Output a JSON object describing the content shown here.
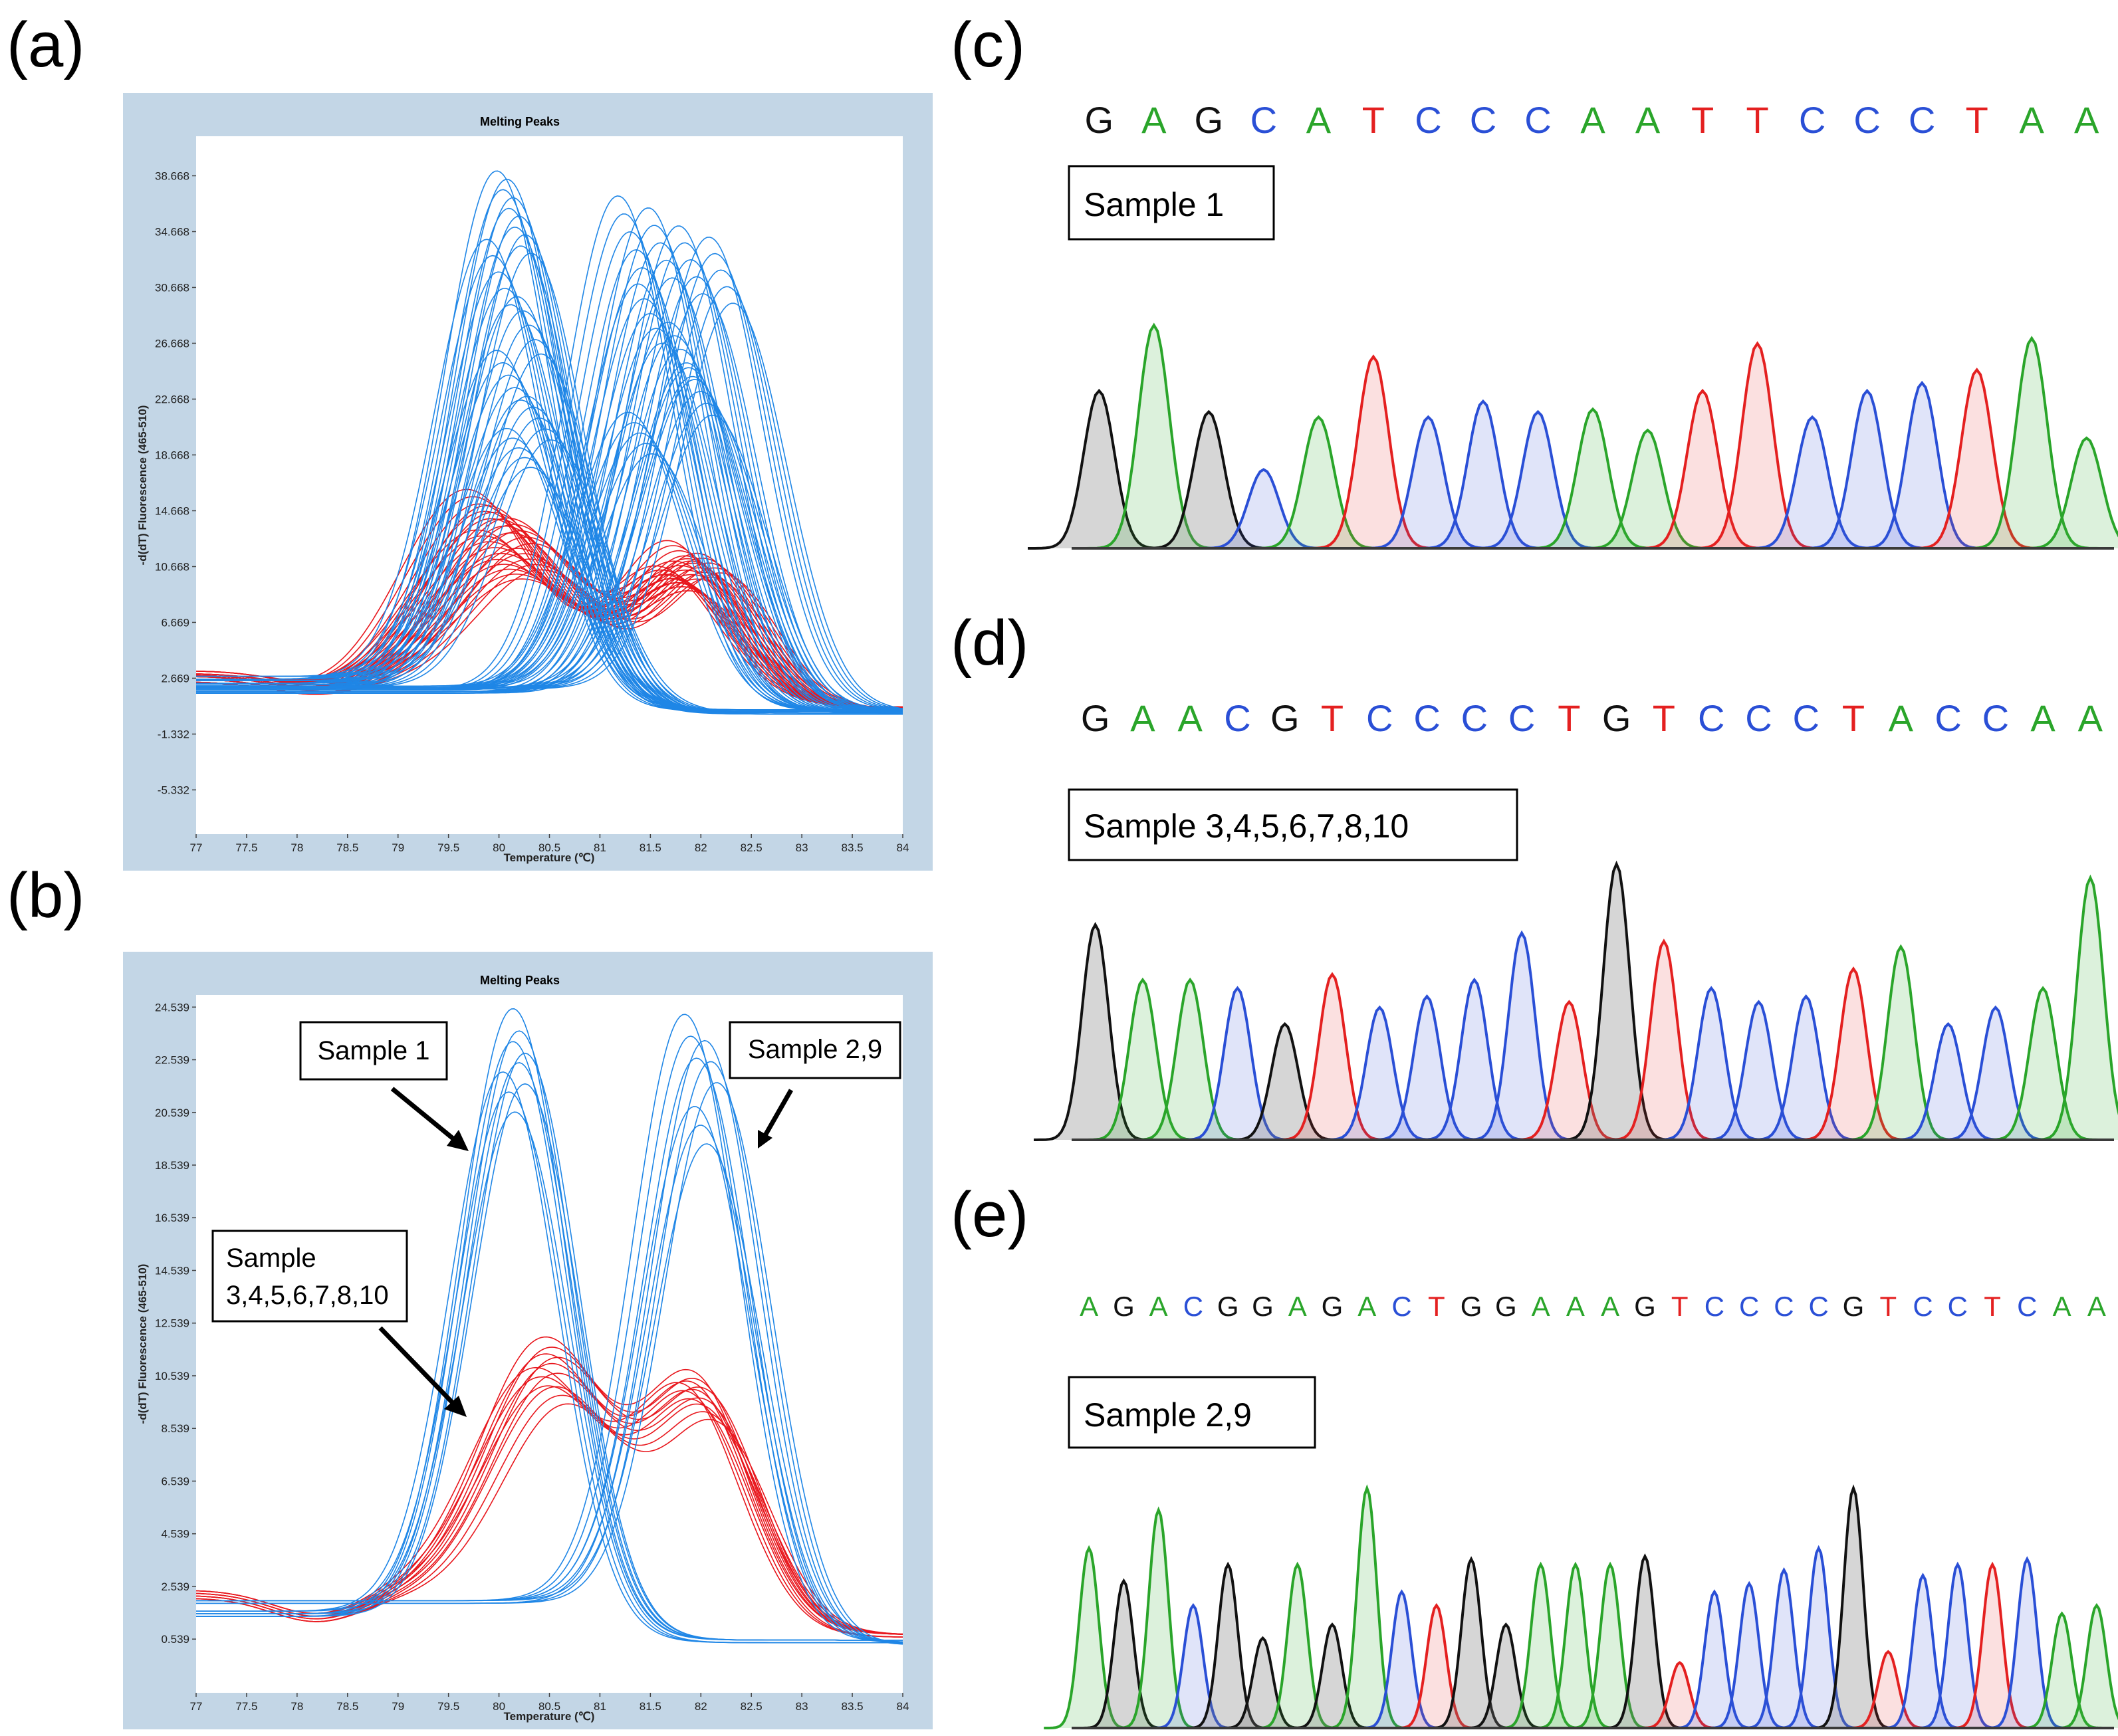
{
  "panel_labels": [
    "(a)",
    "(b)",
    "(c)",
    "(d)",
    "(e)"
  ],
  "colors": {
    "frame_bg": "#c3d6e6",
    "curve_blue": "#1f86e6",
    "curve_red": "#e8161c",
    "base_G": "#111111",
    "base_A": "#2aa52a",
    "base_C": "#2a4fd6",
    "base_T": "#e42020"
  },
  "chart_data": [
    {
      "panel": "(a)",
      "type": "line",
      "title": "Melting Peaks",
      "xlabel": "Temperature (℃)",
      "ylabel": "-d(dT) Fluorescence (465-510)",
      "xlim": [
        77,
        84
      ],
      "ylim": [
        -8.5,
        41.5
      ],
      "x_ticks": [
        "77",
        "77.5",
        "78",
        "78.5",
        "79",
        "79.5",
        "80",
        "80.5",
        "81",
        "81.5",
        "82",
        "82.5",
        "83",
        "83.5",
        "84"
      ],
      "y_ticks": [
        "38.668",
        "34.668",
        "30.668",
        "26.668",
        "22.668",
        "18.668",
        "14.668",
        "10.668",
        "6.669",
        "2.669",
        "-1.332",
        "-5.332"
      ],
      "series": [
        {
          "color": "blue",
          "peak_x": 80.1,
          "peak_y": 38.0,
          "baseline_left": 2.3,
          "baseline_right": 0.2
        },
        {
          "color": "blue",
          "peak_x": 80.2,
          "peak_y": 37.5,
          "baseline_left": 2.0,
          "baseline_right": 0.1
        },
        {
          "color": "blue",
          "peak_x": 80.0,
          "peak_y": 33.0,
          "baseline_left": 2.6,
          "baseline_right": 0.3
        },
        {
          "color": "blue",
          "peak_x": 80.3,
          "peak_y": 29.0,
          "baseline_left": 2.2,
          "baseline_right": 0.1
        },
        {
          "color": "blue",
          "peak_x": 80.1,
          "peak_y": 25.0,
          "baseline_left": 2.8,
          "baseline_right": 0.4
        },
        {
          "color": "blue",
          "peak_x": 80.4,
          "peak_y": 22.0,
          "baseline_left": 2.0,
          "baseline_right": 0.2
        },
        {
          "color": "blue",
          "peak_x": 80.2,
          "peak_y": 19.5,
          "baseline_left": 2.5,
          "baseline_right": 0.3
        },
        {
          "color": "blue",
          "peak_x": 81.3,
          "peak_y": 36.5,
          "baseline_left": 1.8,
          "baseline_right": 0.3
        },
        {
          "color": "blue",
          "peak_x": 81.6,
          "peak_y": 35.5,
          "baseline_left": 2.0,
          "baseline_right": 0.2
        },
        {
          "color": "blue",
          "peak_x": 81.9,
          "peak_y": 34.5,
          "baseline_left": 1.6,
          "baseline_right": 0.4
        },
        {
          "color": "blue",
          "peak_x": 82.2,
          "peak_y": 33.5,
          "baseline_left": 1.9,
          "baseline_right": 0.3
        },
        {
          "color": "blue",
          "peak_x": 81.5,
          "peak_y": 30.0,
          "baseline_left": 2.1,
          "baseline_right": 0.2
        },
        {
          "color": "blue",
          "peak_x": 81.8,
          "peak_y": 27.5,
          "baseline_left": 1.7,
          "baseline_right": 0.3
        },
        {
          "color": "blue",
          "peak_x": 82.0,
          "peak_y": 24.0,
          "baseline_left": 2.0,
          "baseline_right": 0.1
        },
        {
          "color": "blue",
          "peak_x": 81.4,
          "peak_y": 21.0,
          "baseline_left": 1.8,
          "baseline_right": 0.3
        },
        {
          "color": "red",
          "peak1_x": 79.8,
          "peak1_y": 15.0,
          "peak2_x": 81.8,
          "peak2_y": 10.0,
          "baseline_left": 3.0,
          "baseline_right": 0.5
        },
        {
          "color": "red",
          "peak1_x": 80.0,
          "peak1_y": 14.0,
          "peak2_x": 82.0,
          "peak2_y": 9.0,
          "baseline_left": 2.6,
          "baseline_right": 0.4
        },
        {
          "color": "red",
          "peak1_x": 80.2,
          "peak1_y": 13.0,
          "peak2_x": 81.9,
          "peak2_y": 8.5,
          "baseline_left": 2.8,
          "baseline_right": 0.5
        },
        {
          "color": "red",
          "peak1_x": 79.9,
          "peak1_y": 12.0,
          "peak2_x": 81.7,
          "peak2_y": 8.0,
          "baseline_left": 3.2,
          "baseline_right": 0.6
        },
        {
          "color": "red",
          "peak1_x": 80.3,
          "peak1_y": 11.0,
          "peak2_x": 82.1,
          "peak2_y": 9.5,
          "baseline_left": 2.4,
          "baseline_right": 0.4
        },
        {
          "color": "red",
          "peak1_x": 80.1,
          "peak1_y": 10.0,
          "peak2_x": 81.8,
          "peak2_y": 7.5,
          "baseline_left": 2.9,
          "baseline_right": 0.5
        }
      ]
    },
    {
      "panel": "(b)",
      "type": "line",
      "title": "Melting Peaks",
      "xlabel": "Temperature (℃)",
      "ylabel": "-d(dT) Fluorescence (465-510)",
      "xlim": [
        77,
        84
      ],
      "ylim": [
        -1.5,
        25.0
      ],
      "x_ticks": [
        "77",
        "77.5",
        "78",
        "78.5",
        "79",
        "79.5",
        "80",
        "80.5",
        "81",
        "81.5",
        "82",
        "82.5",
        "83",
        "83.5",
        "84"
      ],
      "y_ticks": [
        "24.539",
        "22.539",
        "20.539",
        "18.539",
        "16.539",
        "14.539",
        "12.539",
        "10.539",
        "8.539",
        "6.539",
        "4.539",
        "2.539",
        "0.539"
      ],
      "series": [
        {
          "color": "blue",
          "group": "Sample 1",
          "peak_x": 80.2,
          "peak_y": 24.0,
          "baseline_left": 1.5,
          "baseline_right": 0.5
        },
        {
          "color": "blue",
          "group": "Sample 1",
          "peak_x": 80.2,
          "peak_y": 22.8,
          "baseline_left": 1.4,
          "baseline_right": 0.5
        },
        {
          "color": "blue",
          "group": "Sample 1",
          "peak_x": 80.1,
          "peak_y": 21.5,
          "baseline_left": 1.6,
          "baseline_right": 0.4
        },
        {
          "color": "blue",
          "group": "Sample 2,9",
          "peak_x": 81.9,
          "peak_y": 23.5,
          "baseline_left": 2.0,
          "baseline_right": 0.4
        },
        {
          "color": "blue",
          "group": "Sample 2,9",
          "peak_x": 82.1,
          "peak_y": 22.5,
          "baseline_left": 1.9,
          "baseline_right": 0.3
        },
        {
          "color": "blue",
          "group": "Sample 2,9",
          "peak_x": 82.0,
          "peak_y": 20.0,
          "baseline_left": 2.0,
          "baseline_right": 0.4
        },
        {
          "color": "red",
          "group": "Sample 3,4,5,6,7,8,10",
          "peak1_x": 80.5,
          "peak1_y": 11.0,
          "peak2_x": 82.0,
          "peak2_y": 8.6,
          "baseline_left": 2.3,
          "baseline_right": 0.7
        },
        {
          "color": "red",
          "group": "Sample 3,4,5,6,7,8,10",
          "peak1_x": 80.5,
          "peak1_y": 10.4,
          "peak2_x": 82.0,
          "peak2_y": 8.3,
          "baseline_left": 2.2,
          "baseline_right": 0.7
        },
        {
          "color": "red",
          "group": "Sample 3,4,5,6,7,8,10",
          "peak1_x": 80.4,
          "peak1_y": 9.8,
          "peak2_x": 81.9,
          "peak2_y": 8.0,
          "baseline_left": 2.4,
          "baseline_right": 0.6
        },
        {
          "color": "red",
          "group": "Sample 3,4,5,6,7,8,10",
          "peak1_x": 80.6,
          "peak1_y": 9.2,
          "peak2_x": 82.1,
          "peak2_y": 7.6,
          "baseline_left": 2.1,
          "baseline_right": 0.7
        }
      ],
      "annotations": [
        "Sample 1",
        "Sample 2,9",
        "Sample 3,4,5,6,7,8,10"
      ]
    }
  ],
  "chromatograms": [
    {
      "panel": "(c)",
      "label": "Sample 1",
      "bases": [
        "G",
        "A",
        "G",
        "C",
        "A",
        "T",
        "C",
        "C",
        "C",
        "A",
        "A",
        "T",
        "T",
        "C",
        "C",
        "C",
        "T",
        "A",
        "A"
      ],
      "peak_heights": [
        0.6,
        0.85,
        0.52,
        0.3,
        0.5,
        0.73,
        0.5,
        0.56,
        0.52,
        0.53,
        0.45,
        0.6,
        0.78,
        0.5,
        0.6,
        0.63,
        0.68,
        0.8,
        0.42
      ]
    },
    {
      "panel": "(d)",
      "label": "Sample 3,4,5,6,7,8,10",
      "bases": [
        "G",
        "A",
        "A",
        "C",
        "G",
        "T",
        "C",
        "C",
        "C",
        "C",
        "T",
        "G",
        "T",
        "C",
        "C",
        "C",
        "T",
        "A",
        "C",
        "C",
        "A",
        "A"
      ],
      "peak_heights": [
        0.78,
        0.58,
        0.58,
        0.55,
        0.42,
        0.6,
        0.48,
        0.52,
        0.58,
        0.75,
        0.5,
        1.0,
        0.72,
        0.55,
        0.5,
        0.52,
        0.62,
        0.7,
        0.42,
        0.48,
        0.55,
        0.95
      ]
    },
    {
      "panel": "(e)",
      "label": "Sample 2,9",
      "bases": [
        "A",
        "G",
        "A",
        "C",
        "G",
        "G",
        "A",
        "G",
        "A",
        "C",
        "T",
        "G",
        "G",
        "A",
        "A",
        "A",
        "G",
        "T",
        "C",
        "C",
        "C",
        "C",
        "G",
        "T",
        "C",
        "C",
        "T",
        "C",
        "A",
        "A"
      ],
      "peak_heights": [
        0.66,
        0.54,
        0.8,
        0.45,
        0.6,
        0.33,
        0.6,
        0.38,
        0.88,
        0.5,
        0.45,
        0.62,
        0.38,
        0.6,
        0.6,
        0.6,
        0.63,
        0.24,
        0.5,
        0.53,
        0.58,
        0.66,
        0.88,
        0.28,
        0.56,
        0.6,
        0.6,
        0.62,
        0.42,
        0.45
      ]
    }
  ],
  "seq_label": {
    "c": "Sample 1",
    "d": "Sample 3,4,5,6,7,8,10",
    "e": "Sample 2,9"
  },
  "callouts_b": {
    "s1": "Sample 1",
    "s29": "Sample 2,9",
    "s3_line1": "Sample",
    "s3_line2": "3,4,5,6,7,8,10"
  }
}
